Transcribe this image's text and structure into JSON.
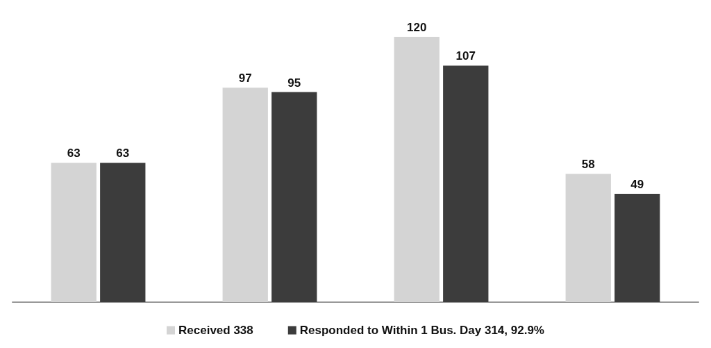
{
  "chart_data": {
    "type": "bar",
    "categories": [
      null,
      null,
      null,
      null
    ],
    "series": [
      {
        "name": "Received 338",
        "color": "#d4d4d4",
        "values": [
          63,
          97,
          120,
          58
        ]
      },
      {
        "name": "Responded to Within 1 Bus. Day 314, 92.9%",
        "color": "#3c3c3c",
        "values": [
          63,
          95,
          107,
          49
        ]
      }
    ],
    "data_labels": true,
    "legend": "bottom",
    "grid": false
  }
}
